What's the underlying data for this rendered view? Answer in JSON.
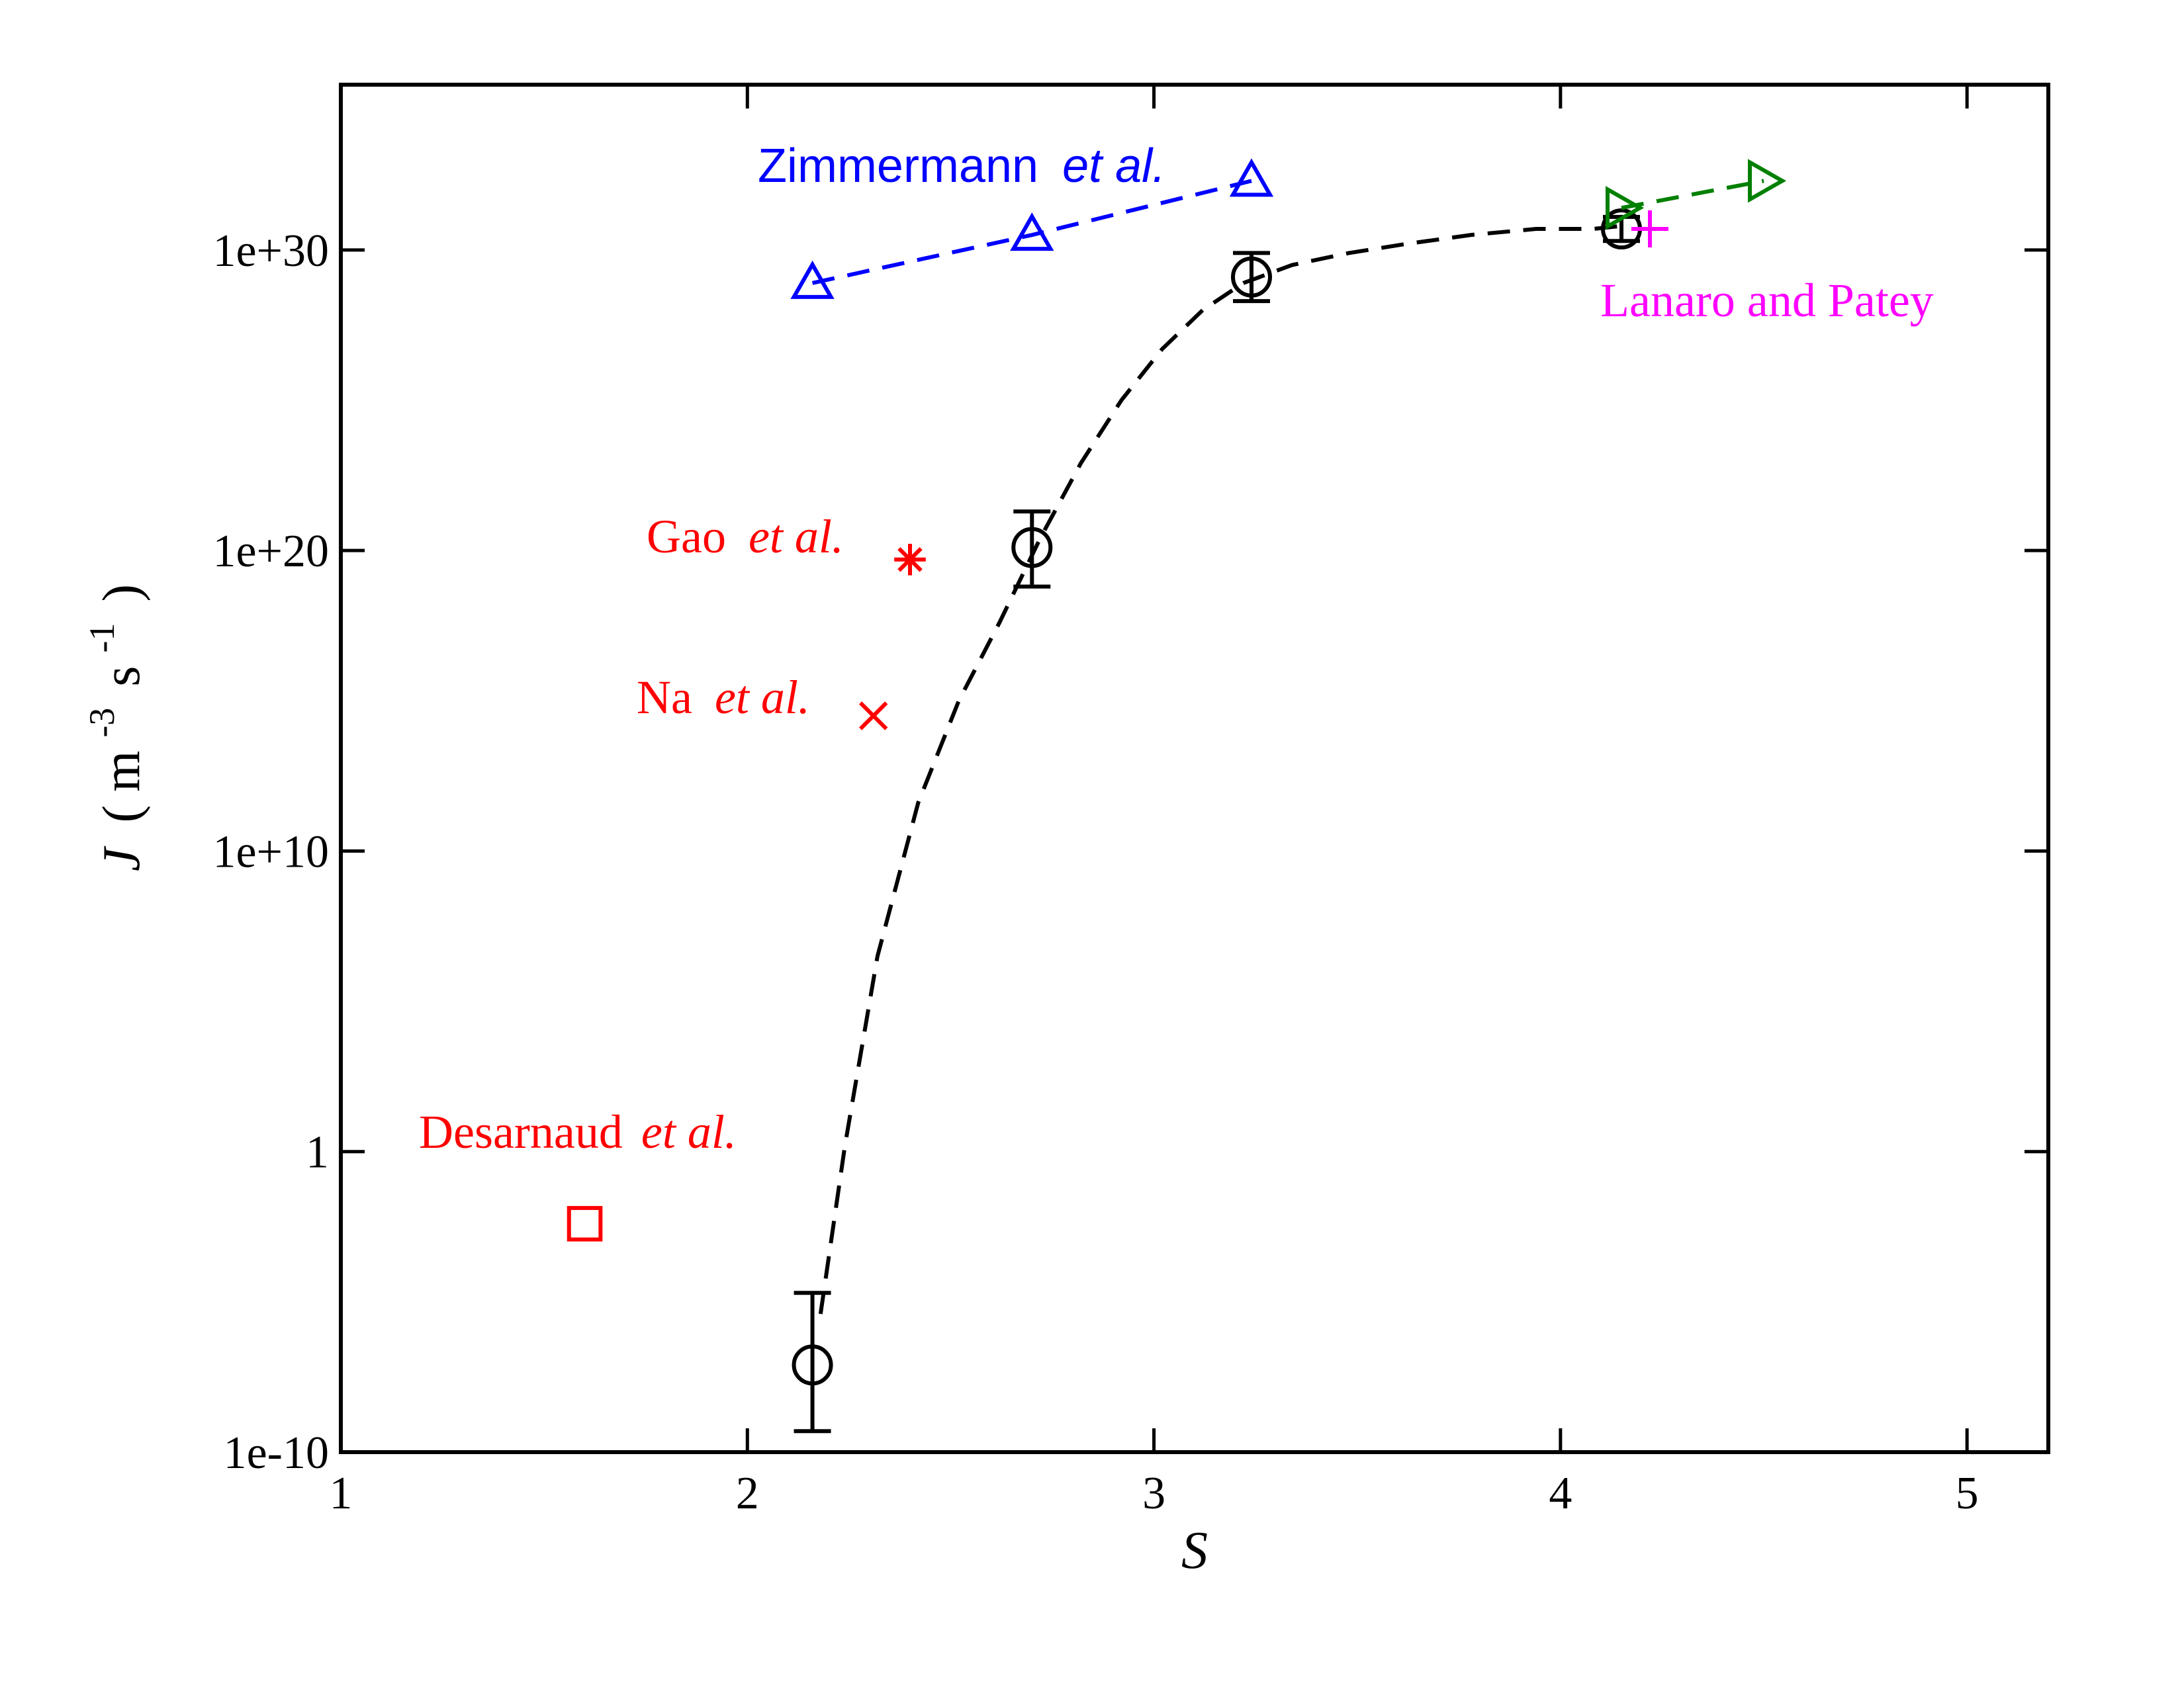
{
  "chart_data": {
    "type": "scatter",
    "xlabel": "S",
    "ylabel_main": "J",
    "ylabel_unit_parts": [
      "(",
      "m",
      "-3",
      "s",
      "-1",
      ")"
    ],
    "xlim": [
      1,
      5.2
    ],
    "ylim_log10": [
      -10,
      35.5
    ],
    "y_scale": "log",
    "x_ticks": [
      1,
      2,
      3,
      4,
      5
    ],
    "x_tick_labels": [
      "1",
      "2",
      "3",
      "4",
      "5"
    ],
    "y_ticks_log10": [
      -10,
      0,
      10,
      20,
      30
    ],
    "y_tick_labels": [
      "1e-10",
      "1",
      "1e+10",
      "1e+20",
      "1e+30"
    ],
    "grid": false,
    "series": [
      {
        "key": "this_work",
        "color": "#000000",
        "marker": "circle",
        "x": [
          2.16,
          2.7,
          3.24,
          4.15
        ],
        "log10_y": [
          -7.1,
          20.1,
          29.1,
          30.7
        ],
        "err_log10_low": [
          2.2,
          1.3,
          0.8,
          0.4
        ],
        "err_log10_high": [
          2.4,
          1.2,
          0.8,
          0.4
        ],
        "fit_x": [
          2.18,
          2.24,
          2.32,
          2.42,
          2.52,
          2.62,
          2.72,
          2.82,
          2.92,
          3.02,
          3.12,
          3.22,
          3.34,
          3.48,
          3.62,
          3.78,
          3.94,
          4.08,
          4.15
        ],
        "fit_log10_y": [
          -5.4,
          0.2,
          6.5,
          11.6,
          15.0,
          17.6,
          20.4,
          22.9,
          25.0,
          26.7,
          28.0,
          28.9,
          29.5,
          29.9,
          30.2,
          30.5,
          30.7,
          30.7,
          30.8
        ]
      },
      {
        "key": "zimmermann",
        "color": "#0000ff",
        "marker": "triangle-up",
        "x": [
          2.16,
          2.7,
          3.24
        ],
        "log10_y": [
          28.9,
          30.5,
          32.3
        ]
      },
      {
        "key": "green",
        "color": "#008000",
        "marker": "triangle-right",
        "x": [
          4.15,
          4.5
        ],
        "log10_y": [
          31.4,
          32.3
        ]
      },
      {
        "key": "lanaro",
        "color": "#ff00ff",
        "marker": "plus",
        "x": [
          4.22
        ],
        "log10_y": [
          30.7
        ]
      },
      {
        "key": "gao",
        "color": "#ff0000",
        "marker": "asterisk",
        "x": [
          2.4
        ],
        "log10_y": [
          19.7
        ]
      },
      {
        "key": "na",
        "color": "#ff0000",
        "marker": "x",
        "x": [
          2.31
        ],
        "log10_y": [
          14.5
        ]
      },
      {
        "key": "desarnaud",
        "color": "#ff0000",
        "marker": "square",
        "x": [
          1.6
        ],
        "log10_y": [
          -2.4
        ]
      }
    ],
    "annotations": {
      "zimmermann": {
        "text": "Zimmermann",
        "etal": "et al.",
        "color": "#0000ff"
      },
      "lanaro": {
        "text": "Lanaro and Patey",
        "color": "#ff00ff"
      },
      "gao": {
        "text": "Gao",
        "etal": "et al.",
        "color": "#ff0000"
      },
      "na": {
        "text": "Na",
        "etal": "et al.",
        "color": "#ff0000"
      },
      "desarnaud": {
        "text": "Desarnaud",
        "etal": "et al.",
        "color": "#ff0000"
      }
    }
  }
}
